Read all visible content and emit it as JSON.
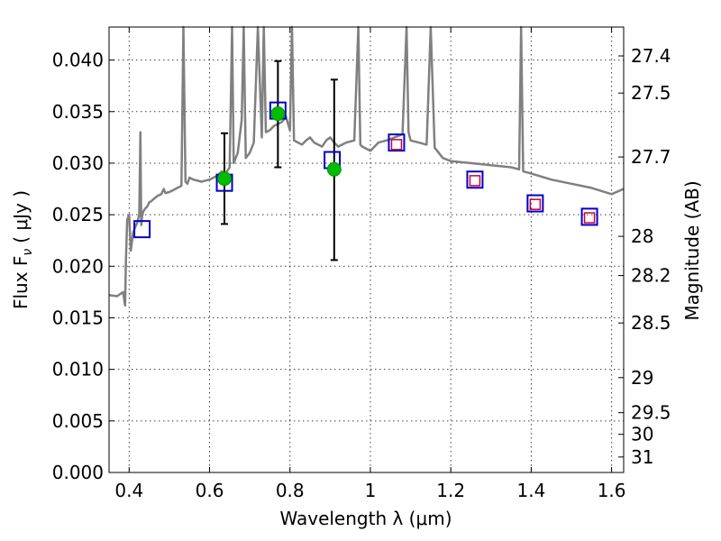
{
  "chart_data": {
    "type": "scatter",
    "xlabel": "Wavelength  λ (μm)",
    "ylabel": "Flux  F",
    "ylabel_sub": "ν",
    "ylabel_unit": "( μJy )",
    "y2label": "Magnitude (AB)",
    "xlim": [
      0.35,
      1.63
    ],
    "ylim": [
      0.0,
      0.0432
    ],
    "grid": true,
    "x_ticks": [
      0.4,
      0.6,
      0.8,
      1.0,
      1.2,
      1.4,
      1.6
    ],
    "x_tick_labels": [
      "0.4",
      "0.6",
      "0.8",
      "1",
      "1.2",
      "1.4",
      "1.6"
    ],
    "y_ticks": [
      0.0,
      0.005,
      0.01,
      0.015,
      0.02,
      0.025,
      0.03,
      0.035,
      0.04
    ],
    "y_tick_labels": [
      "0.000",
      "0.005",
      "0.010",
      "0.015",
      "0.020",
      "0.025",
      "0.030",
      "0.035",
      "0.040"
    ],
    "y2_ticks": [
      {
        "label": "27.4",
        "flux": 0.0404
      },
      {
        "label": "27.5",
        "flux": 0.0368
      },
      {
        "label": "27.7",
        "flux": 0.0306
      },
      {
        "label": "28",
        "flux": 0.0229
      },
      {
        "label": "28.2",
        "flux": 0.0191
      },
      {
        "label": "28.5",
        "flux": 0.0145
      },
      {
        "label": "29",
        "flux": 0.0092
      },
      {
        "label": "29.5",
        "flux": 0.0058
      },
      {
        "label": "30",
        "flux": 0.0037
      },
      {
        "label": "31",
        "flux": 0.0015
      }
    ],
    "series": [
      {
        "style": "line",
        "color": "#808080",
        "x": [
          0.35,
          0.37,
          0.385,
          0.39,
          0.392,
          0.395,
          0.4,
          0.402,
          0.404,
          0.41,
          0.415,
          0.42,
          0.425,
          0.428,
          0.43,
          0.432,
          0.435,
          0.44,
          0.445,
          0.45,
          0.455,
          0.46,
          0.47,
          0.48,
          0.486,
          0.49,
          0.5,
          0.51,
          0.52,
          0.53,
          0.535,
          0.54,
          0.545,
          0.55,
          0.56,
          0.58,
          0.6,
          0.62,
          0.63,
          0.64,
          0.65,
          0.656,
          0.66,
          0.67,
          0.68,
          0.685,
          0.69,
          0.7,
          0.71,
          0.72,
          0.73,
          0.735,
          0.74,
          0.75,
          0.76,
          0.77,
          0.78,
          0.79,
          0.8,
          0.805,
          0.81,
          0.82,
          0.83,
          0.84,
          0.85,
          0.86,
          0.87,
          0.88,
          0.89,
          0.9,
          0.91,
          0.92,
          0.94,
          0.96,
          0.97,
          0.975,
          0.98,
          1.0,
          1.02,
          1.04,
          1.06,
          1.08,
          1.09,
          1.095,
          1.1,
          1.12,
          1.14,
          1.15,
          1.16,
          1.18,
          1.2,
          1.25,
          1.3,
          1.35,
          1.37,
          1.375,
          1.38,
          1.4,
          1.45,
          1.5,
          1.55,
          1.6,
          1.63
        ],
        "y": [
          0.0172,
          0.0171,
          0.0175,
          0.0162,
          0.0205,
          0.0245,
          0.025,
          0.0232,
          0.0215,
          0.0233,
          0.0238,
          0.0242,
          0.025,
          0.033,
          0.024,
          0.0248,
          0.0253,
          0.0256,
          0.0258,
          0.0262,
          0.0263,
          0.0265,
          0.0268,
          0.027,
          0.0275,
          0.0271,
          0.0272,
          0.0274,
          0.0276,
          0.0278,
          0.0432,
          0.0282,
          0.028,
          0.0286,
          0.0284,
          0.0282,
          0.0284,
          0.0288,
          0.0292,
          0.029,
          0.0296,
          0.0432,
          0.03,
          0.031,
          0.0342,
          0.0432,
          0.0305,
          0.031,
          0.032,
          0.0432,
          0.0325,
          0.0432,
          0.033,
          0.0332,
          0.0336,
          0.0338,
          0.034,
          0.0345,
          0.0332,
          0.0432,
          0.0322,
          0.032,
          0.0318,
          0.0322,
          0.0325,
          0.032,
          0.0318,
          0.0316,
          0.0322,
          0.0325,
          0.032,
          0.0316,
          0.032,
          0.0322,
          0.0432,
          0.0318,
          0.0316,
          0.0312,
          0.032,
          0.0322,
          0.0325,
          0.0328,
          0.0432,
          0.033,
          0.0322,
          0.032,
          0.0318,
          0.0432,
          0.0315,
          0.0305,
          0.0302,
          0.03,
          0.0298,
          0.0296,
          0.0294,
          0.0432,
          0.0292,
          0.029,
          0.0284,
          0.028,
          0.0276,
          0.027,
          0.0275
        ]
      },
      {
        "name": "",
        "style": "circle-errorbar",
        "color": "#00bb00",
        "x": [
          0.637,
          0.77,
          0.91
        ],
        "y": [
          0.0285,
          0.0348,
          0.0294
        ],
        "yerr_low": [
          0.0241,
          0.0296,
          0.0206
        ],
        "yerr_high": [
          0.0329,
          0.0399,
          0.0381
        ]
      },
      {
        "style": "square-blue",
        "color": "#0000cc",
        "x": [
          0.432,
          0.637,
          0.77,
          0.905,
          1.065,
          1.26,
          1.41,
          1.545
        ],
        "y": [
          0.0236,
          0.0281,
          0.0351,
          0.0303,
          0.032,
          0.0284,
          0.0261,
          0.0248
        ]
      },
      {
        "style": "square-red-small",
        "color": "#cc0033",
        "x": [
          1.065,
          1.26,
          1.41,
          1.545
        ],
        "y": [
          0.0318,
          0.0283,
          0.026,
          0.0247
        ]
      }
    ]
  }
}
